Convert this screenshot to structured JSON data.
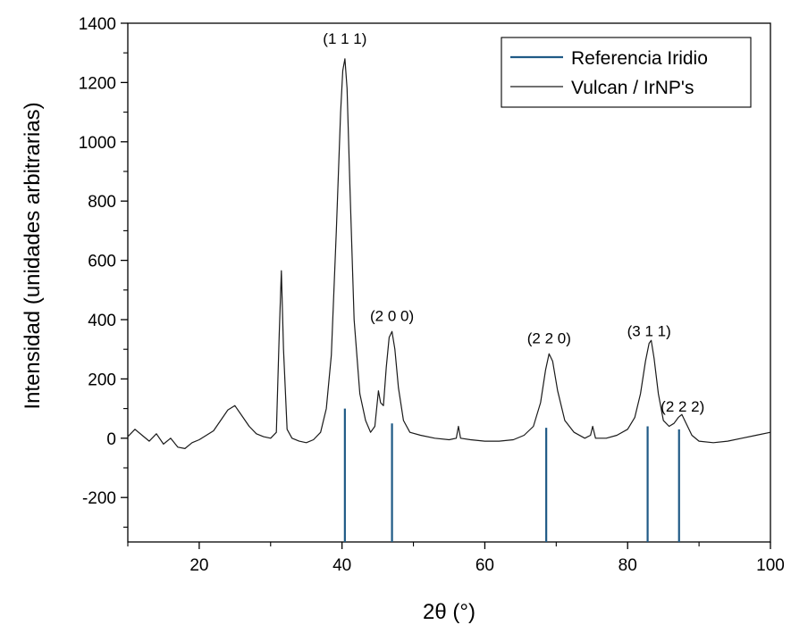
{
  "chart_data": {
    "type": "line",
    "title": "",
    "xlabel": "2θ (°)",
    "ylabel": "Intensidad (unidades arbitrarias)",
    "xlim": [
      10,
      100
    ],
    "ylim": [
      -350,
      1400
    ],
    "x_ticks": [
      20,
      40,
      60,
      80,
      100
    ],
    "y_ticks": [
      -200,
      0,
      200,
      400,
      600,
      800,
      1000,
      1200,
      1400
    ],
    "grid": false,
    "legend_position": "top-right",
    "series": [
      {
        "name": "Referencia Iridio",
        "kind": "reference-sticks",
        "color": "#1f5a86",
        "x": [
          40.4,
          47.0,
          68.6,
          82.8,
          87.2
        ],
        "y_top": [
          100,
          50,
          35,
          40,
          30
        ],
        "y_bottom": -350
      },
      {
        "name": "Vulcan / IrNP's",
        "kind": "line",
        "color": "#1a1a1a",
        "x": [
          10,
          11,
          12,
          13,
          14,
          15,
          16,
          17,
          18,
          19,
          20,
          21,
          22,
          23,
          24,
          25,
          26,
          27,
          28,
          29,
          30,
          30.8,
          31.2,
          31.5,
          31.8,
          32.3,
          33,
          34,
          35,
          36,
          37,
          37.8,
          38.5,
          39.2,
          39.8,
          40.1,
          40.4,
          40.7,
          41.1,
          41.7,
          42.5,
          43.3,
          44,
          44.6,
          45.1,
          45.4,
          45.8,
          46.2,
          46.6,
          47.0,
          47.4,
          47.9,
          48.6,
          49.5,
          51,
          53,
          55,
          56,
          56.3,
          56.6,
          58,
          60,
          62,
          64,
          65.5,
          66.8,
          67.8,
          68.5,
          69.0,
          69.5,
          70.2,
          71.2,
          72.5,
          74,
          74.8,
          75.1,
          75.5,
          77,
          78.5,
          80,
          81,
          81.8,
          82.5,
          83.0,
          83.3,
          83.7,
          84.3,
          85,
          85.8,
          86.5,
          87.1,
          87.6,
          88.2,
          89,
          90,
          92,
          94,
          96,
          98,
          100
        ],
        "y": [
          5,
          30,
          10,
          -10,
          15,
          -20,
          0,
          -30,
          -35,
          -15,
          -5,
          10,
          25,
          60,
          95,
          110,
          75,
          40,
          15,
          5,
          0,
          20,
          350,
          565,
          300,
          30,
          0,
          -10,
          -15,
          -5,
          20,
          100,
          280,
          700,
          1100,
          1240,
          1280,
          1180,
          850,
          400,
          150,
          60,
          20,
          40,
          160,
          120,
          110,
          240,
          340,
          360,
          300,
          170,
          60,
          20,
          10,
          0,
          -5,
          0,
          40,
          0,
          -5,
          -10,
          -10,
          -5,
          10,
          40,
          120,
          230,
          285,
          260,
          160,
          60,
          20,
          0,
          10,
          40,
          0,
          0,
          10,
          30,
          70,
          150,
          260,
          320,
          330,
          270,
          150,
          60,
          40,
          50,
          70,
          80,
          50,
          10,
          -10,
          -15,
          -10,
          0,
          10,
          20
        ]
      }
    ],
    "annotations": [
      {
        "text": "(1 1 1)",
        "x": 40.4,
        "y": 1330
      },
      {
        "text": "(2 0 0)",
        "x": 47.0,
        "y": 395
      },
      {
        "text": "(2 2 0)",
        "x": 69.0,
        "y": 320
      },
      {
        "text": "(3 1 1)",
        "x": 83.0,
        "y": 345
      },
      {
        "text": "(2 2 2)",
        "x": 87.7,
        "y": 90
      }
    ]
  }
}
